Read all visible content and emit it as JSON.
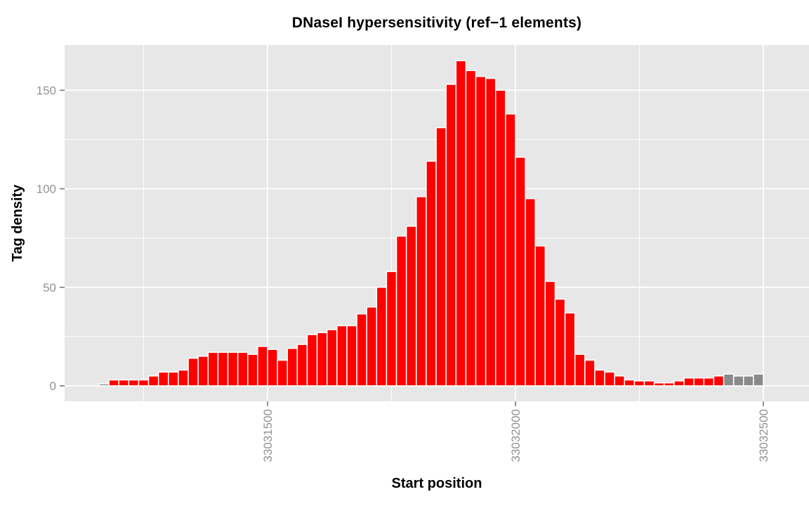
{
  "chart_data": {
    "type": "bar",
    "title": "DNaseI hypersensitivity (ref−1 elements)",
    "xlabel": "Start position",
    "ylabel": "Tag density",
    "x_ticks": [
      33031500,
      33032000,
      33032500
    ],
    "x_tick_labels": [
      "33031500",
      "33032000",
      "33032500"
    ],
    "x_minor": [
      33031250,
      33031750,
      33032250
    ],
    "y_ticks": [
      0,
      50,
      100,
      150
    ],
    "y_tick_labels": [
      "0",
      "50",
      "100",
      "150"
    ],
    "y_minor": [
      25,
      75,
      125
    ],
    "xlim": [
      33031091,
      33032592
    ],
    "ylim": [
      -8,
      173
    ],
    "grid": "on",
    "legend": "none",
    "bin_start": 33031160,
    "bin_width": 20,
    "values": [
      1,
      3,
      3,
      3,
      3,
      5,
      7,
      7,
      8,
      14,
      15,
      17,
      17,
      17,
      17,
      16,
      20,
      18.5,
      13,
      19,
      21,
      26,
      27,
      28.5,
      30.5,
      30.5,
      36.5,
      40,
      50,
      58,
      76,
      81,
      96,
      114,
      131,
      153,
      165,
      160,
      157,
      156,
      150,
      138,
      116,
      95,
      71,
      53,
      44,
      37,
      16,
      13,
      8,
      7,
      5,
      3,
      2.5,
      2.5,
      1.5,
      1.5,
      2.5,
      4,
      4,
      4,
      5,
      6,
      5,
      5,
      6
    ],
    "gray_indices": [
      0,
      63,
      64,
      65,
      66
    ]
  },
  "colors": {
    "bar_red": "#FF0000",
    "bar_gray": "#8A8A8A",
    "panel": "#E7E7E7",
    "grid": "#FFFFFF",
    "tick": "#7A7A7A",
    "tick_text": "#929292",
    "text": "#000000"
  }
}
